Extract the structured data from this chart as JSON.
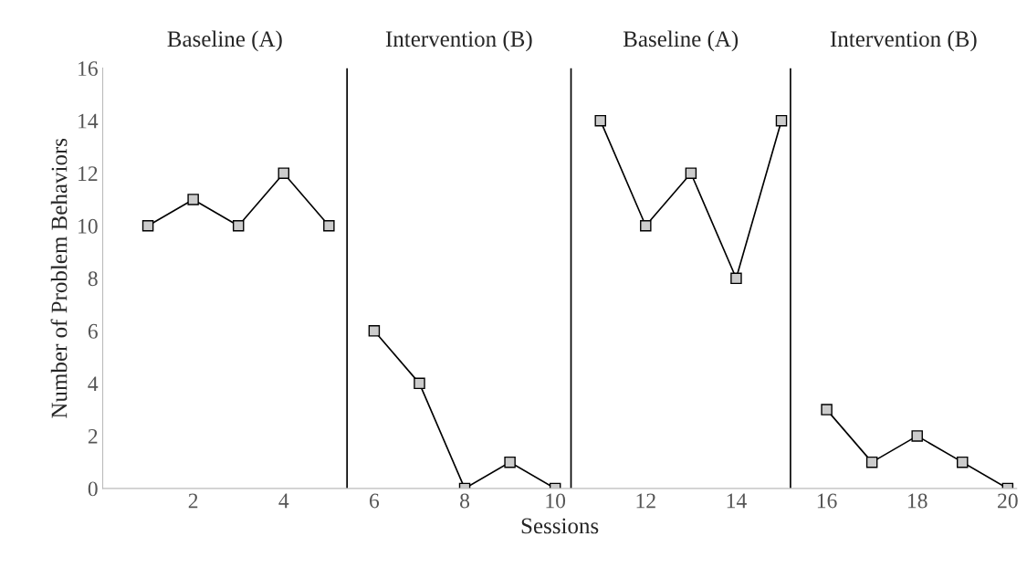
{
  "chart_data": {
    "type": "line",
    "xlabel": "Sessions",
    "ylabel": "Number of Problem Behaviors",
    "annotations": [
      "Baseline (A)",
      "Intervention (B)",
      "Baseline (A)",
      "Intervention (B)"
    ],
    "series": [
      {
        "color": "#000000",
        "x": [
          1,
          2,
          3,
          4,
          5
        ],
        "values": [
          10,
          11,
          10,
          12,
          10
        ]
      },
      {
        "color": "#000000",
        "x": [
          6,
          7,
          8,
          9,
          10
        ],
        "values": [
          6,
          4,
          0,
          1,
          0
        ]
      },
      {
        "color": "#000000",
        "x": [
          11,
          12,
          13,
          14,
          15
        ],
        "values": [
          14,
          10,
          12,
          8,
          14
        ]
      },
      {
        "color": "#000000",
        "x": [
          16,
          17,
          18,
          19,
          20
        ],
        "values": [
          3,
          1,
          2,
          1,
          0
        ]
      }
    ],
    "ref_lines": [
      {
        "axis": "x",
        "value": 5.4,
        "color": "#000000"
      },
      {
        "axis": "x",
        "value": 10.35,
        "color": "#000000"
      },
      {
        "axis": "x",
        "value": 15.2,
        "color": "#000000"
      }
    ],
    "xlim": [
      0,
      20.2
    ],
    "xticks": [
      2,
      4,
      6,
      8,
      10,
      12,
      14,
      16,
      18,
      20
    ],
    "ylim": [
      0,
      16
    ],
    "yticks": [
      0,
      2,
      4,
      6,
      8,
      10,
      12,
      14,
      16
    ],
    "marker": "square",
    "line_style": "solid",
    "grid": false,
    "legend": false
  }
}
